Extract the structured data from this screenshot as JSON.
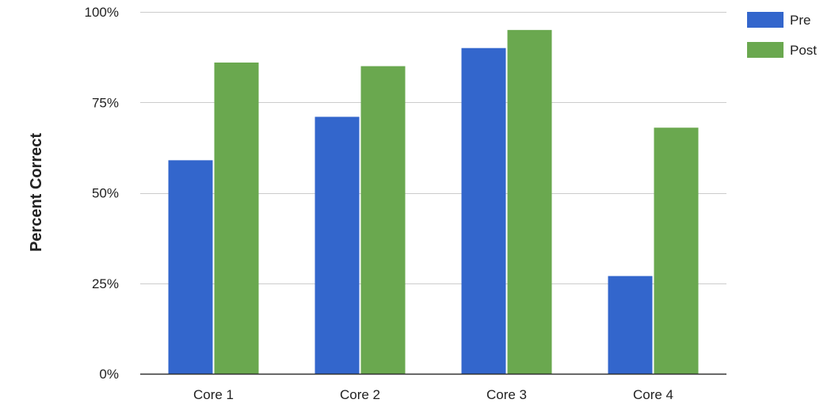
{
  "chart_data": {
    "type": "bar",
    "title": "",
    "xlabel": "",
    "ylabel": "Percent Correct",
    "categories": [
      "Core 1",
      "Core 2",
      "Core 3",
      "Core 4"
    ],
    "series": [
      {
        "name": "Pre",
        "color": "#3366cc",
        "values": [
          59,
          71,
          90,
          27
        ]
      },
      {
        "name": "Post",
        "color": "#6aa84f",
        "values": [
          86,
          85,
          95,
          68
        ]
      }
    ],
    "ylim": [
      0,
      100
    ],
    "yticks": [
      0,
      25,
      50,
      75,
      100
    ],
    "ytick_labels": [
      "0%",
      "25%",
      "50%",
      "75%",
      "100%"
    ],
    "grid": true,
    "legend_position": "top-right"
  }
}
